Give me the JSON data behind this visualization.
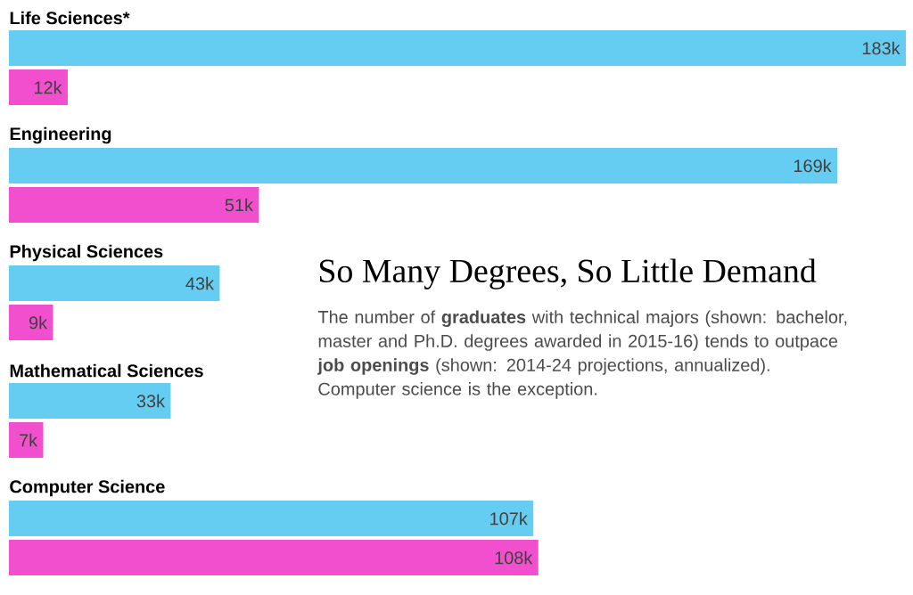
{
  "chart_data": {
    "type": "bar",
    "orientation": "horizontal",
    "title": "So Many Degrees, So Little Demand",
    "subtitle": "The number of **graduates** with technical majors (shown: bachelor, master and Ph.D. degrees awarded in 2015-16) tends to outpace **job openings** (shown: 2014-24 projections, annualized). Computer science is the exception.",
    "categories": [
      "Life Sciences*",
      "Engineering",
      "Physical Sciences",
      "Mathematical Sciences",
      "Computer Science"
    ],
    "series": [
      {
        "color": "#66cdf2",
        "values": [
          183,
          169,
          43,
          33,
          107
        ],
        "value_labels": [
          "183k",
          "169k",
          "43k",
          "33k",
          "107k"
        ]
      },
      {
        "color": "#f24fcf",
        "values": [
          12,
          51,
          9,
          7,
          108
        ],
        "value_labels": [
          "12k",
          "51k",
          "9k",
          "7k",
          "108k"
        ]
      }
    ]
  }
}
